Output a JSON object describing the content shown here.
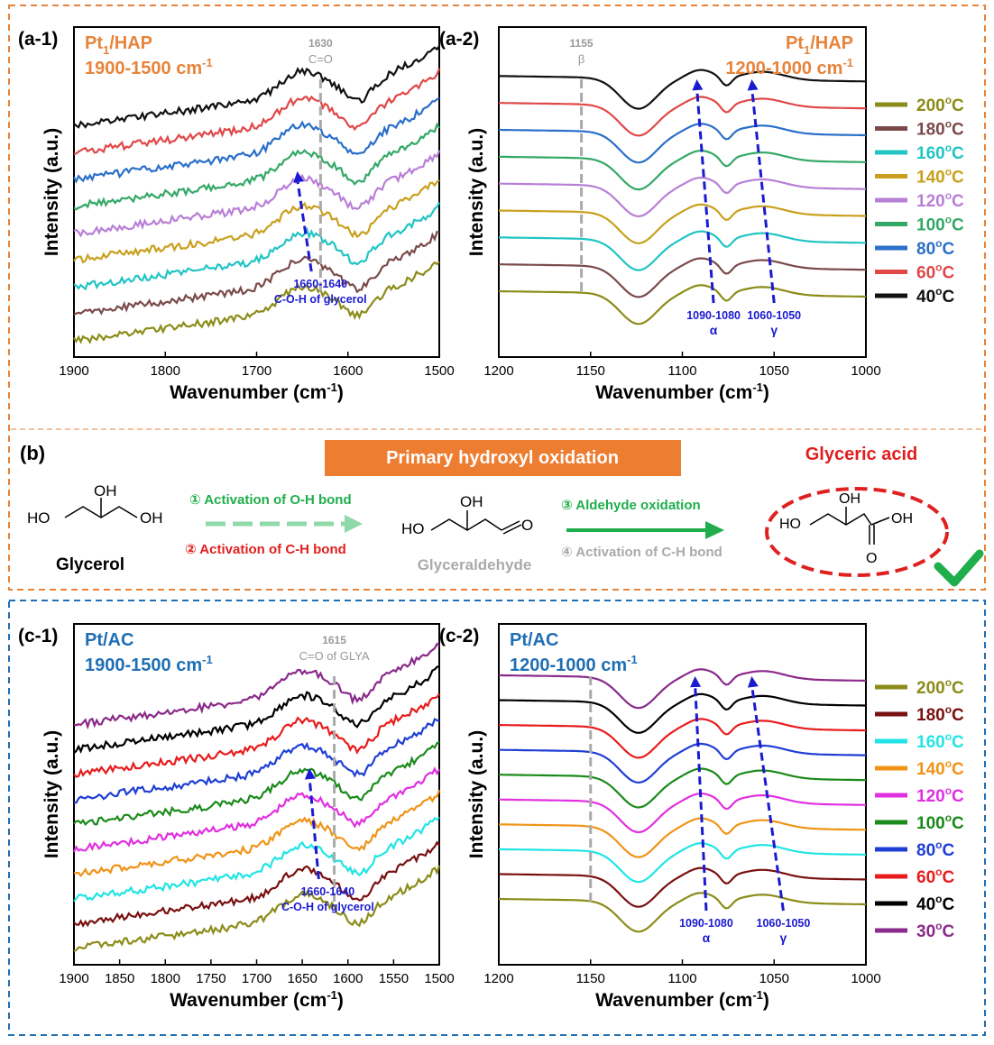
{
  "colors": {
    "orange": "#E8833A",
    "blue": "#1F6FB5",
    "arrow_blue": "#1a1ad0",
    "red": "#e02020",
    "green": "#1fae4b",
    "light_green": "#8fd8a8",
    "gray": "#aaaaaa",
    "orange_bar": "#ED7D31"
  },
  "legend_top": [
    {
      "label": "200",
      "color": "#8c8c1a"
    },
    {
      "label": "180",
      "color": "#7a4a4a"
    },
    {
      "label": "160",
      "color": "#22c4c4"
    },
    {
      "label": "140",
      "color": "#c9a01e"
    },
    {
      "label": "120",
      "color": "#b87fd6"
    },
    {
      "label": "100",
      "color": "#34a866"
    },
    {
      "label": "80",
      "color": "#2a6fc9"
    },
    {
      "label": "60",
      "color": "#e04848"
    },
    {
      "label": "40",
      "color": "#111111"
    }
  ],
  "legend_bottom": [
    {
      "label": "200",
      "color": "#8c8c1a"
    },
    {
      "label": "180",
      "color": "#7a1010"
    },
    {
      "label": "160",
      "color": "#22e4e4"
    },
    {
      "label": "140",
      "color": "#f09418"
    },
    {
      "label": "120",
      "color": "#e030e0"
    },
    {
      "label": "100",
      "color": "#1a8a1a"
    },
    {
      "label": "80",
      "color": "#1f3fd4"
    },
    {
      "label": "60",
      "color": "#e81c1c"
    },
    {
      "label": "40",
      "color": "#000000"
    },
    {
      "label": "30",
      "color": "#8a2a8a"
    }
  ],
  "legend_unit": "oC",
  "chart_data": [
    {
      "id": "a-1",
      "type": "line",
      "panel_label": "(a-1)",
      "title_html_parts": [
        "Pt",
        "1",
        "/HAP"
      ],
      "range_text": "1900-1500 cm",
      "range_sup": "-1",
      "xlabel": "Wavenumber (cm",
      "xlabel_sup": "-1",
      "xlabel_end": ")",
      "ylabel": "Intensity (a.u.)",
      "xlim": [
        1900,
        1500
      ],
      "xticks": [
        "1900",
        "1800",
        "1700",
        "1600",
        "1500"
      ],
      "xtick_values": [
        1900,
        1800,
        1700,
        1600,
        1500
      ],
      "series_legend": "top",
      "marker_line": {
        "x": 1630,
        "label1": "1630",
        "label2": "C=O"
      },
      "arrow": {
        "x1": 1640,
        "x2": 1655,
        "label1": "1660-1640",
        "label2": "C-O-H of glycerol"
      }
    },
    {
      "id": "a-2",
      "type": "line",
      "panel_label": "(a-2)",
      "title_html_parts": [
        "Pt",
        "1",
        "/HAP"
      ],
      "range_text": "1200-1000 cm",
      "range_sup": "-1",
      "xlabel": "Wavenumber (cm",
      "xlabel_sup": "-1",
      "xlabel_end": ")",
      "ylabel": "Intensity (a.u.)",
      "xlim": [
        1200,
        1000
      ],
      "xticks": [
        "1200",
        "1150",
        "1100",
        "1050",
        "1000"
      ],
      "xtick_values": [
        1200,
        1150,
        1100,
        1050,
        1000
      ],
      "series_legend": "top",
      "marker_line": {
        "x": 1155,
        "label1": "1155",
        "label2": "β"
      },
      "arrows": [
        {
          "x1": 1083,
          "x2": 1092,
          "label1": "1090-1080",
          "label2": "α"
        },
        {
          "x1": 1050,
          "x2": 1062,
          "label1": "1060-1050",
          "label2": "γ"
        }
      ]
    },
    {
      "id": "c-1",
      "type": "line",
      "panel_label": "(c-1)",
      "title_html_parts": [
        "Pt/AC",
        "",
        ""
      ],
      "range_text": "1900-1500 cm",
      "range_sup": "-1",
      "xlabel": "Wavenumber (cm",
      "xlabel_sup": "-1",
      "xlabel_end": ")",
      "ylabel": "Intensity (a.u.)",
      "xlim": [
        1900,
        1500
      ],
      "xticks": [
        "1900",
        "1850",
        "1800",
        "1750",
        "1700",
        "1650",
        "1600",
        "1550",
        "1500"
      ],
      "xtick_values": [
        1900,
        1850,
        1800,
        1750,
        1700,
        1650,
        1600,
        1550,
        1500
      ],
      "series_legend": "bottom",
      "marker_line": {
        "x": 1615,
        "label1": "1615",
        "label2": "C=O of GLYA"
      },
      "arrow": {
        "x1": 1632,
        "x2": 1642,
        "label1": "1660-1640",
        "label2": "C-O-H of glycerol"
      }
    },
    {
      "id": "c-2",
      "type": "line",
      "panel_label": "(c-2)",
      "title_html_parts": [
        "Pt/AC",
        "",
        ""
      ],
      "range_text": "1200-1000 cm",
      "range_sup": "-1",
      "xlabel": "Wavenumber (cm",
      "xlabel_sup": "-1",
      "xlabel_end": ")",
      "ylabel": "Intensity (a.u.)",
      "xlim": [
        1200,
        1000
      ],
      "xticks": [
        "1200",
        "1150",
        "1100",
        "1050",
        "1000"
      ],
      "xtick_values": [
        1200,
        1150,
        1100,
        1050,
        1000
      ],
      "series_legend": "bottom",
      "marker_line": {
        "x": 1150,
        "label1": "",
        "label2": ""
      },
      "arrows": [
        {
          "x1": 1087,
          "x2": 1093,
          "label1": "1090-1080",
          "label2": "α"
        },
        {
          "x1": 1045,
          "x2": 1062,
          "label1": "1060-1050",
          "label2": "γ"
        }
      ]
    }
  ],
  "scheme": {
    "label": "(b)",
    "banner": "Primary hydroxyl oxidation",
    "product_title": "Glyceric acid",
    "glycerol": "Glycerol",
    "glyceraldehyde": "Glyceraldehyde",
    "step1": "① Activation of O-H bond",
    "step2": "② Activation of C-H bond",
    "step3": "③ Aldehyde oxidation",
    "step4": "④ Activation of C-H bond",
    "oh": "OH",
    "ho": "HO",
    "o": "O"
  }
}
